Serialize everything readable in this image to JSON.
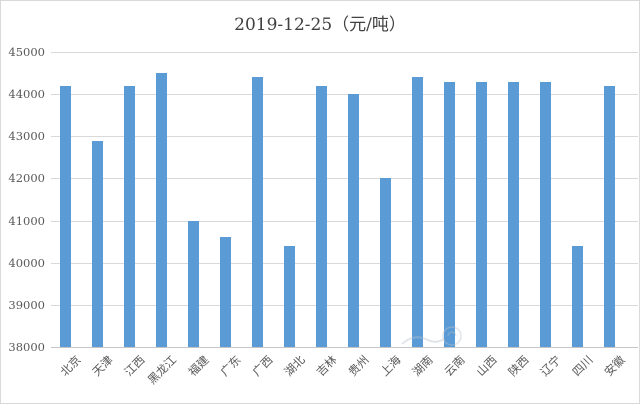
{
  "chart_data": {
    "type": "bar",
    "title": "2019-12-25（元/吨）",
    "categories": [
      "北京",
      "天津",
      "江西",
      "黑龙江",
      "福建",
      "广东",
      "广西",
      "湖北",
      "吉林",
      "贵州",
      "上海",
      "湖南",
      "云南",
      "山西",
      "陕西",
      "辽宁",
      "四川",
      "安徽"
    ],
    "values": [
      44200,
      42900,
      44200,
      44500,
      41000,
      40600,
      44400,
      40400,
      44200,
      44000,
      42000,
      44400,
      44300,
      44300,
      44300,
      44300,
      40400,
      44200
    ],
    "xlabel": "",
    "ylabel": "",
    "ylim": [
      38000,
      45000
    ],
    "ytick_step": 1000,
    "yticks": [
      "45000",
      "44000",
      "43000",
      "42000",
      "41000",
      "40000",
      "39000",
      "38000"
    ],
    "grid": true,
    "legend": "none",
    "bar_color": "#5B9BD5",
    "gridline_color": "#D9D9D9",
    "axis_line_color": "#C6C6C6",
    "axis_text_color": "#595959",
    "title_color": "#404040"
  }
}
